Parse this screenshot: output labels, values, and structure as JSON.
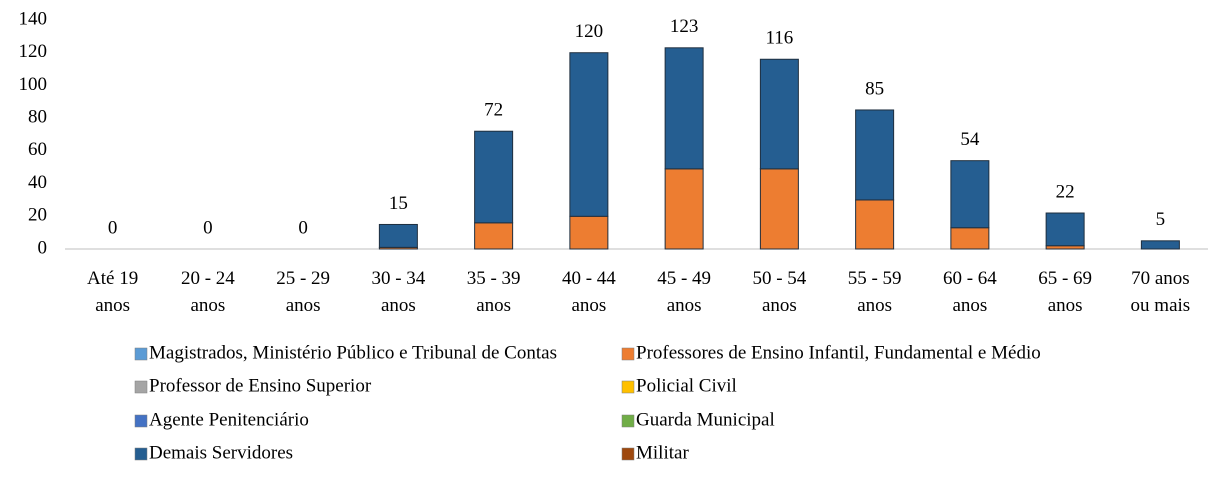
{
  "chart_data": {
    "type": "stacked-bar",
    "categories": [
      "Até 19\nanos",
      "20 - 24\nanos",
      "25 - 29\nanos",
      "30 - 34\nanos",
      "35 - 39\nanos",
      "40 - 44\nanos",
      "45 - 49\nanos",
      "50 - 54\nanos",
      "55 - 59\nanos",
      "60 - 64\nanos",
      "65 - 69\nanos",
      "70 anos\nou mais"
    ],
    "series": [
      {
        "name": "Magistrados, Ministério Público e Tribunal de Contas",
        "color": "#5b9bd5",
        "values": [
          0,
          0,
          0,
          0,
          0,
          0,
          0,
          0,
          0,
          0,
          0,
          0
        ]
      },
      {
        "name": "Professores de Ensino Infantil, Fundamental e Médio",
        "color": "#ed7d31",
        "values": [
          0,
          0,
          0,
          1,
          16,
          20,
          49,
          49,
          30,
          13,
          2,
          0
        ]
      },
      {
        "name": "Professor de Ensino Superior",
        "color": "#a5a5a5",
        "values": [
          0,
          0,
          0,
          0,
          0,
          0,
          0,
          0,
          0,
          0,
          0,
          0
        ]
      },
      {
        "name": "Policial Civil",
        "color": "#ffc000",
        "values": [
          0,
          0,
          0,
          0,
          0,
          0,
          0,
          0,
          0,
          0,
          0,
          0
        ]
      },
      {
        "name": "Agente Penitenciário",
        "color": "#4472c4",
        "values": [
          0,
          0,
          0,
          0,
          0,
          0,
          0,
          0,
          0,
          0,
          0,
          0
        ]
      },
      {
        "name": "Guarda Municipal",
        "color": "#70ad47",
        "values": [
          0,
          0,
          0,
          0,
          0,
          0,
          0,
          0,
          0,
          0,
          0,
          0
        ]
      },
      {
        "name": "Demais Servidores",
        "color": "#255e91",
        "values": [
          0,
          0,
          0,
          14,
          56,
          100,
          74,
          67,
          55,
          41,
          20,
          5
        ]
      },
      {
        "name": "Militar",
        "color": "#9e480e",
        "values": [
          0,
          0,
          0,
          0,
          0,
          0,
          0,
          0,
          0,
          0,
          0,
          0
        ]
      }
    ],
    "totals": [
      0,
      0,
      0,
      15,
      72,
      120,
      123,
      116,
      85,
      54,
      22,
      5
    ],
    "ylim": [
      0,
      140
    ],
    "yticks": [
      0,
      20,
      40,
      60,
      80,
      100,
      120,
      140
    ],
    "grid": false,
    "legend": "bottom"
  }
}
